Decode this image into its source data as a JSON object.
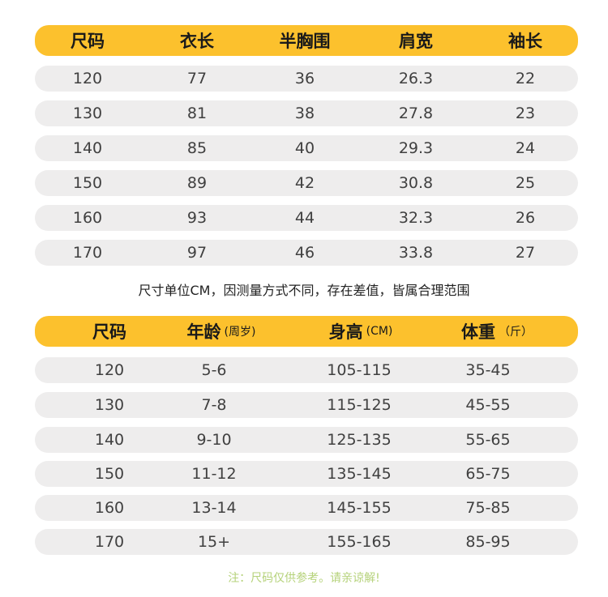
{
  "table1": {
    "headers": [
      "尺码",
      "衣长",
      "半胸围",
      "肩宽",
      "袖长"
    ],
    "rows": [
      [
        "120",
        "77",
        "36",
        "26.3",
        "22"
      ],
      [
        "130",
        "81",
        "38",
        "27.8",
        "23"
      ],
      [
        "140",
        "85",
        "40",
        "29.3",
        "24"
      ],
      [
        "150",
        "89",
        "42",
        "30.8",
        "25"
      ],
      [
        "160",
        "93",
        "44",
        "32.3",
        "26"
      ],
      [
        "170",
        "97",
        "46",
        "33.8",
        "27"
      ]
    ]
  },
  "note1": "尺寸单位CM，因测量方式不同，存在差值，皆属合理范围",
  "table2": {
    "headers": [
      {
        "main": "尺码",
        "sub": ""
      },
      {
        "main": "年龄",
        "sub": "(周岁)"
      },
      {
        "main": "身高",
        "sub": "(CM)"
      },
      {
        "main": "体重",
        "sub": "（斤）"
      }
    ],
    "rows": [
      [
        "120",
        "5-6",
        "105-115",
        "35-45"
      ],
      [
        "130",
        "7-8",
        "115-125",
        "45-55"
      ],
      [
        "140",
        "9-10",
        "125-135",
        "55-65"
      ],
      [
        "150",
        "11-12",
        "135-145",
        "65-75"
      ],
      [
        "160",
        "13-14",
        "145-155",
        "75-85"
      ],
      [
        "170",
        "15+",
        "155-165",
        "85-95"
      ]
    ]
  },
  "note2": "注：尺码仅供参考。请亲谅解!",
  "colors": {
    "header": "#fcc12d",
    "row": "#eeeded",
    "note2": "#b5d27a"
  }
}
